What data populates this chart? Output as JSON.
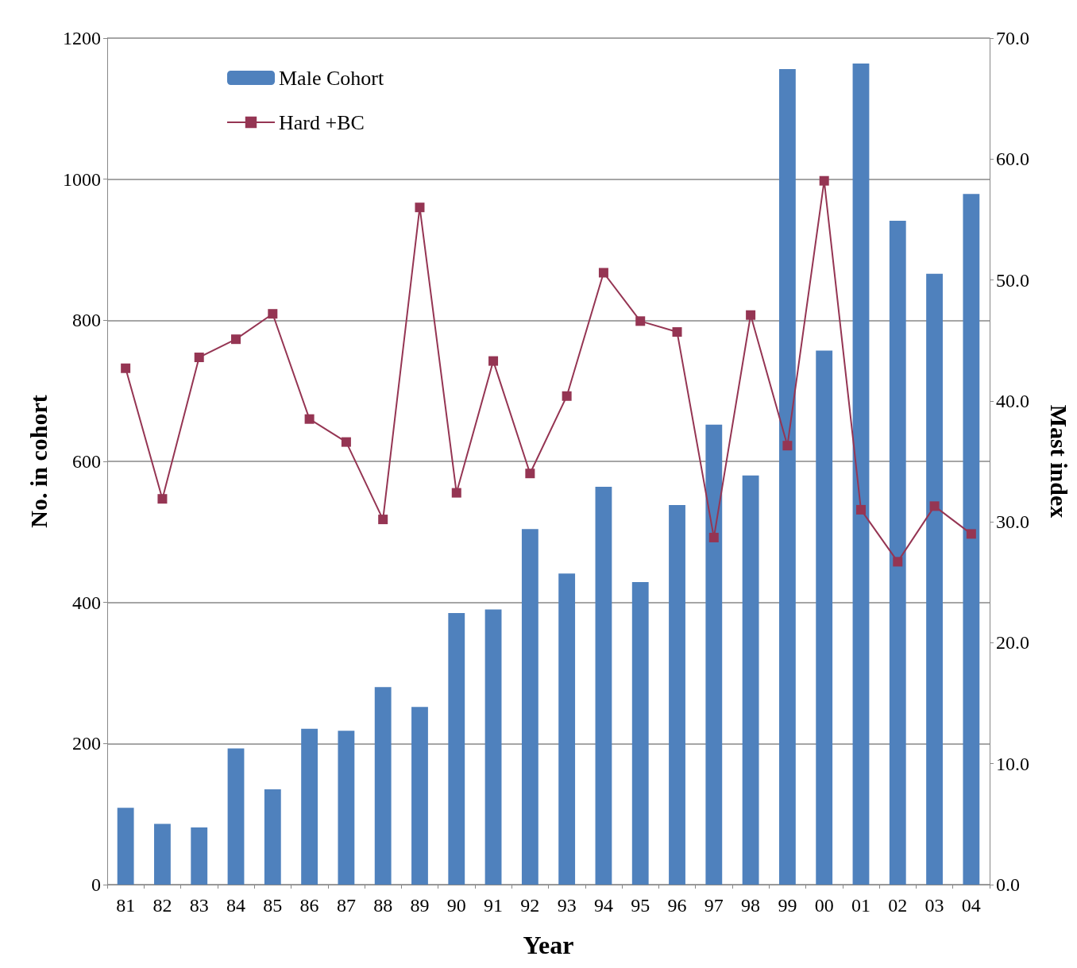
{
  "chart_data": {
    "type": "bar",
    "xlabel": "Year",
    "ylabel": "No. in cohort",
    "y2label": "Mast index",
    "categories": [
      "81",
      "82",
      "83",
      "84",
      "85",
      "86",
      "87",
      "88",
      "89",
      "90",
      "91",
      "92",
      "93",
      "94",
      "95",
      "96",
      "97",
      "98",
      "99",
      "00",
      "01",
      "02",
      "03",
      "04"
    ],
    "series": [
      {
        "name": "Male Cohort",
        "color": "#4f81bd",
        "values": [
          109,
          86,
          81,
          193,
          135,
          221,
          218,
          280,
          252,
          385,
          390,
          504,
          441,
          564,
          429,
          538,
          652,
          580,
          1156,
          757,
          1164,
          941,
          866,
          979
        ]
      },
      {
        "name": "Hard +BC",
        "type": "line",
        "axis": "y2",
        "color": "#953553",
        "values": [
          42.7,
          31.9,
          43.6,
          45.1,
          47.2,
          38.5,
          36.6,
          30.2,
          56.0,
          32.4,
          43.3,
          34.0,
          40.4,
          50.6,
          46.6,
          45.7,
          28.7,
          47.1,
          36.3,
          58.2,
          31.0,
          26.7,
          31.3,
          29.0
        ]
      }
    ],
    "ylim": [
      0,
      1200
    ],
    "yticks": [
      0,
      200,
      400,
      600,
      800,
      1000,
      1200
    ],
    "y2lim": [
      0,
      70
    ],
    "y2ticks": [
      {
        "value": 0,
        "label": "0.0"
      },
      {
        "value": 10,
        "label": "10.0"
      },
      {
        "value": 20,
        "label": "20.0"
      },
      {
        "value": 30,
        "label": "30.0"
      },
      {
        "value": 40,
        "label": "40.0"
      },
      {
        "value": 50,
        "label": "50.0"
      },
      {
        "value": 60,
        "label": "60.0"
      },
      {
        "value": 70,
        "label": "70.0"
      }
    ],
    "grid": "y",
    "legend": "top left",
    "marker": "square",
    "line_style": "solid"
  }
}
